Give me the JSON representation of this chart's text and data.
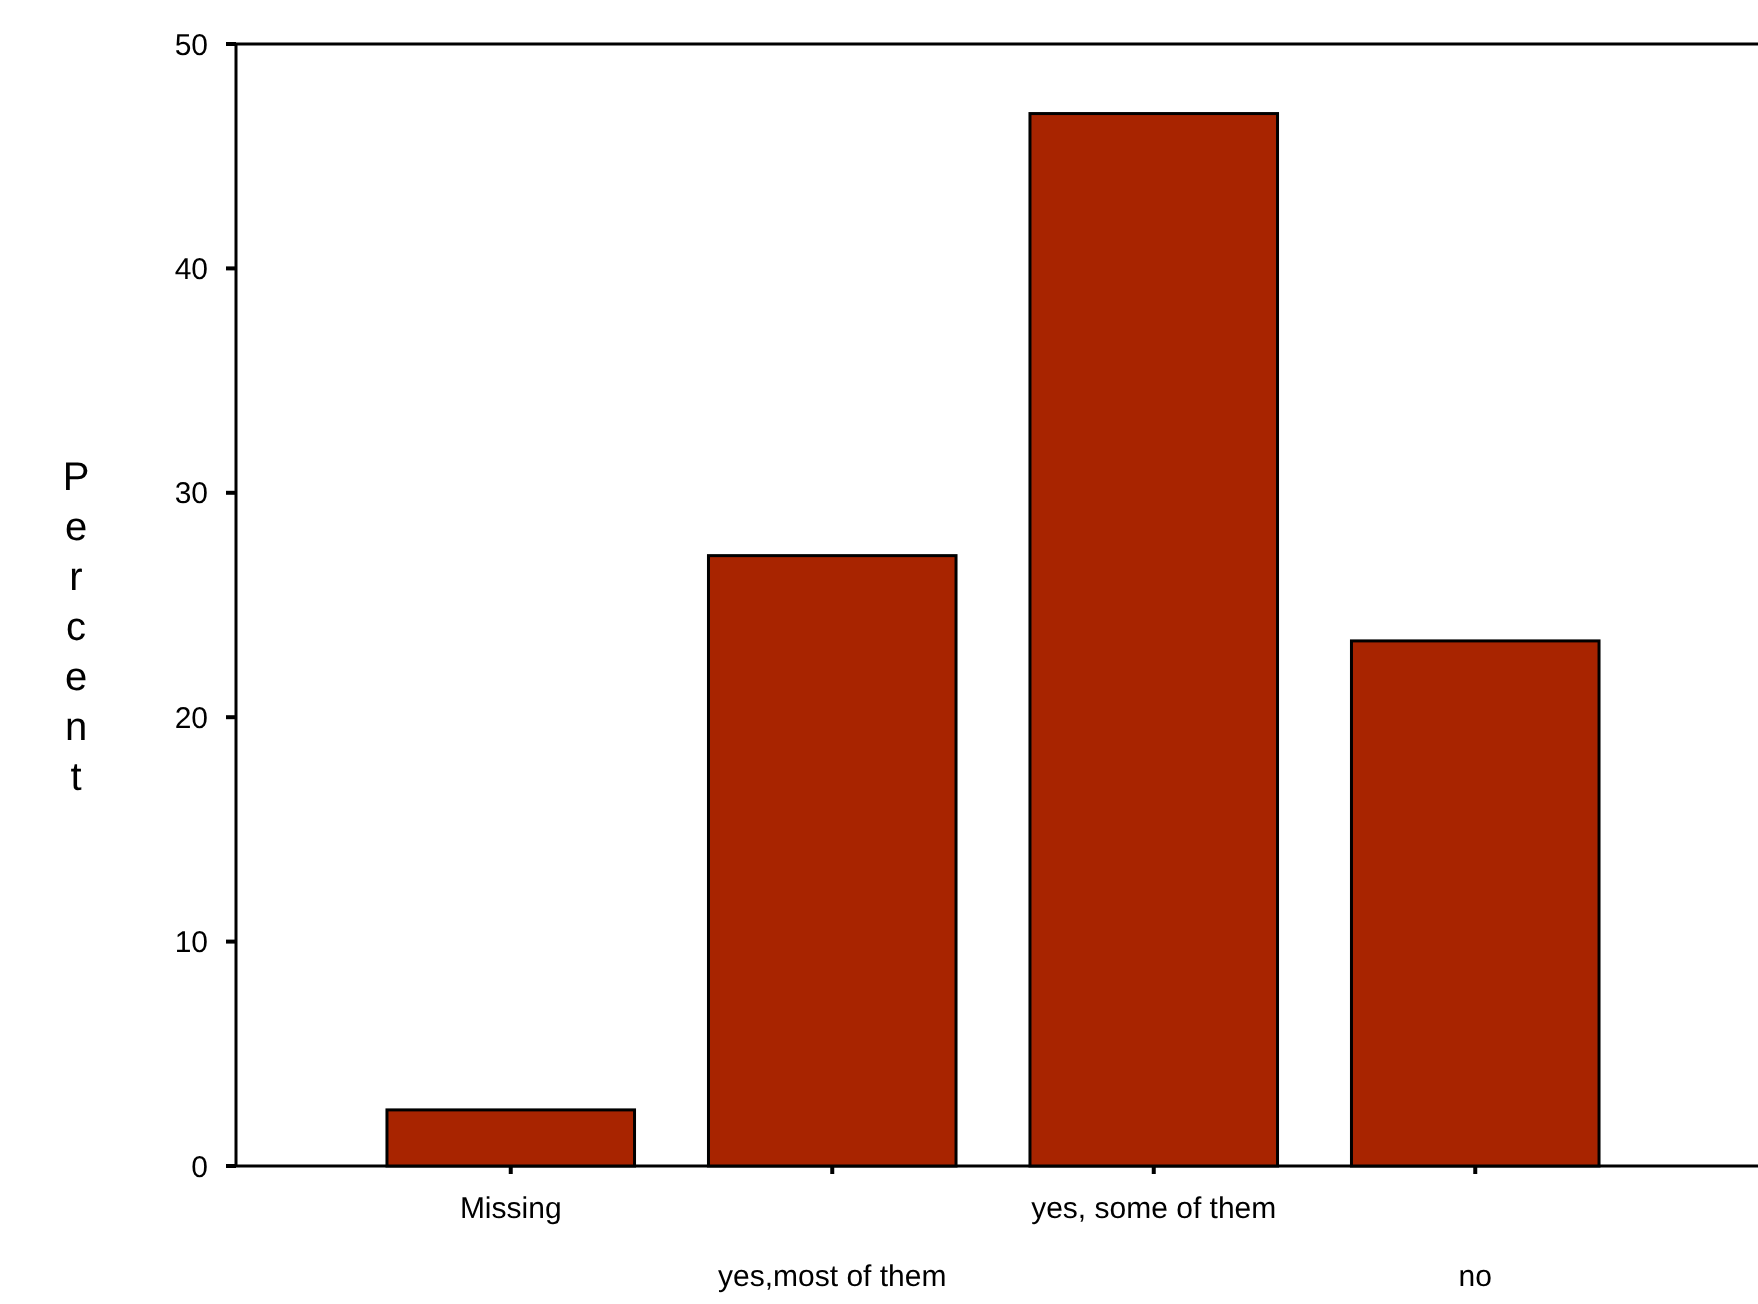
{
  "chart_data": {
    "type": "bar",
    "ylabel": "Percent",
    "categories": [
      "Missing",
      "yes,most of them",
      "yes, some of them",
      "no"
    ],
    "values": [
      2.5,
      27.2,
      46.9,
      23.4
    ],
    "color": "#a82400",
    "ylim": [
      0,
      50
    ],
    "yticks": [
      0,
      10,
      20,
      30,
      40,
      50
    ],
    "grid": false
  }
}
